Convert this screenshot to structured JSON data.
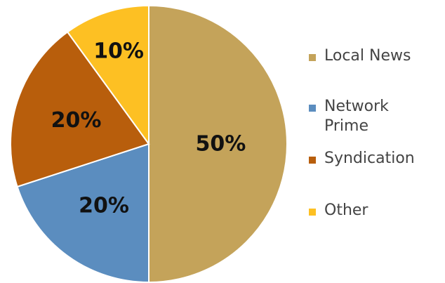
{
  "chart_data": {
    "type": "pie",
    "title": "",
    "categories": [
      "Local News",
      "Network Prime",
      "Syndication",
      "Other"
    ],
    "values": [
      50,
      20,
      20,
      10
    ],
    "labels": [
      "50%",
      "20%",
      "20%",
      "10%"
    ],
    "colors": [
      "#C4A35A",
      "#5B8DBF",
      "#B85E0C",
      "#FDC023"
    ],
    "start_angle_deg": 0,
    "direction": "clockwise",
    "legend_position": "right"
  }
}
